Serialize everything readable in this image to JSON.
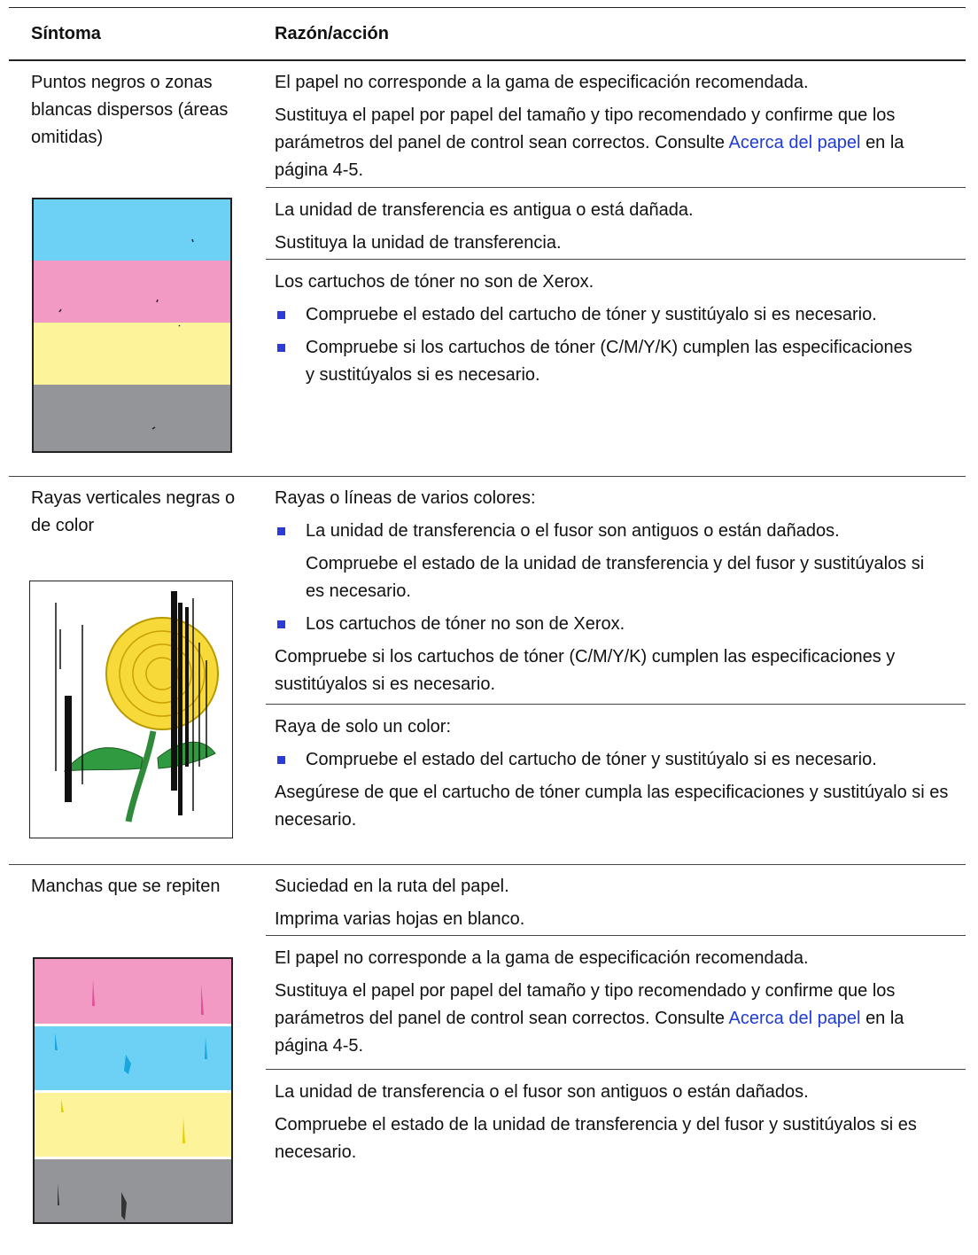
{
  "header": {
    "symptom": "Síntoma",
    "action": "Razón/acción"
  },
  "rows": [
    {
      "symptom": "Puntos negros o zonas blancas dispersos (áreas omitidas)",
      "actions": [
        [
          {
            "text": "El papel no corresponde a la gama de especificación recomendada."
          },
          {
            "text": "Sustituya el papel por papel del tamaño y tipo recomendado y confirme que los parámetros del panel de control sean correctos. Consulte",
            "link": "Acerca del papel",
            "after": "en la página 4-5."
          }
        ],
        [
          {
            "text": "La unidad de transferencia es antigua o está dañada."
          },
          {
            "text": "Sustituya la unidad de transferencia."
          }
        ],
        [
          {
            "text": "Los cartuchos de tóner no son de Xerox."
          },
          {
            "bullet": "Compruebe el estado del cartucho de tóner y sustitúyalo si es necesario."
          },
          {
            "bullet": "Compruebe si los cartuchos de tóner (C/M/Y/K) cumplen las especificaciones y sustitúyalos si es necesario."
          }
        ]
      ]
    },
    {
      "symptom": "Rayas verticales negras o de color",
      "actions": [
        [
          {
            "text": "Rayas o líneas de varios colores:"
          },
          {
            "bullet": "La unidad de transferencia o el fusor son antiguos o están dañados."
          },
          {
            "indent": "Compruebe el estado de la unidad de transferencia y del fusor y sustitúyalos si es necesario."
          },
          {
            "bullet": "Los cartuchos de tóner no son de Xerox."
          },
          {
            "text": "Compruebe si los cartuchos de tóner (C/M/Y/K) cumplen las especificaciones y sustitúyalos si es necesario."
          }
        ],
        [
          {
            "text": "Raya de solo un color:"
          },
          {
            "bullet": "Compruebe el estado del cartucho de tóner y sustitúyalo si es necesario."
          },
          {
            "text": "Asegúrese de que el cartucho de tóner cumpla las especificaciones y sustitúyalo si es necesario."
          }
        ]
      ]
    },
    {
      "symptom": "Manchas que se repiten",
      "actions": [
        [
          {
            "text": "Suciedad en la ruta del papel."
          },
          {
            "text": "Imprima varias hojas en blanco."
          }
        ],
        [
          {
            "text": "El papel no corresponde a la gama de especificación recomendada."
          },
          {
            "text": "Sustituya el papel por papel del tamaño y tipo recomendado y confirme que los parámetros del panel de control sean correctos. Consulte",
            "link": "Acerca del papel",
            "after": "en la página 4-5."
          }
        ],
        [
          {
            "text": "La unidad de transferencia o el fusor son antiguos o están dañados."
          },
          {
            "text": "Compruebe el estado de la unidad de transferencia y del fusor y sustitúyalos si es necesario."
          }
        ]
      ]
    }
  ]
}
